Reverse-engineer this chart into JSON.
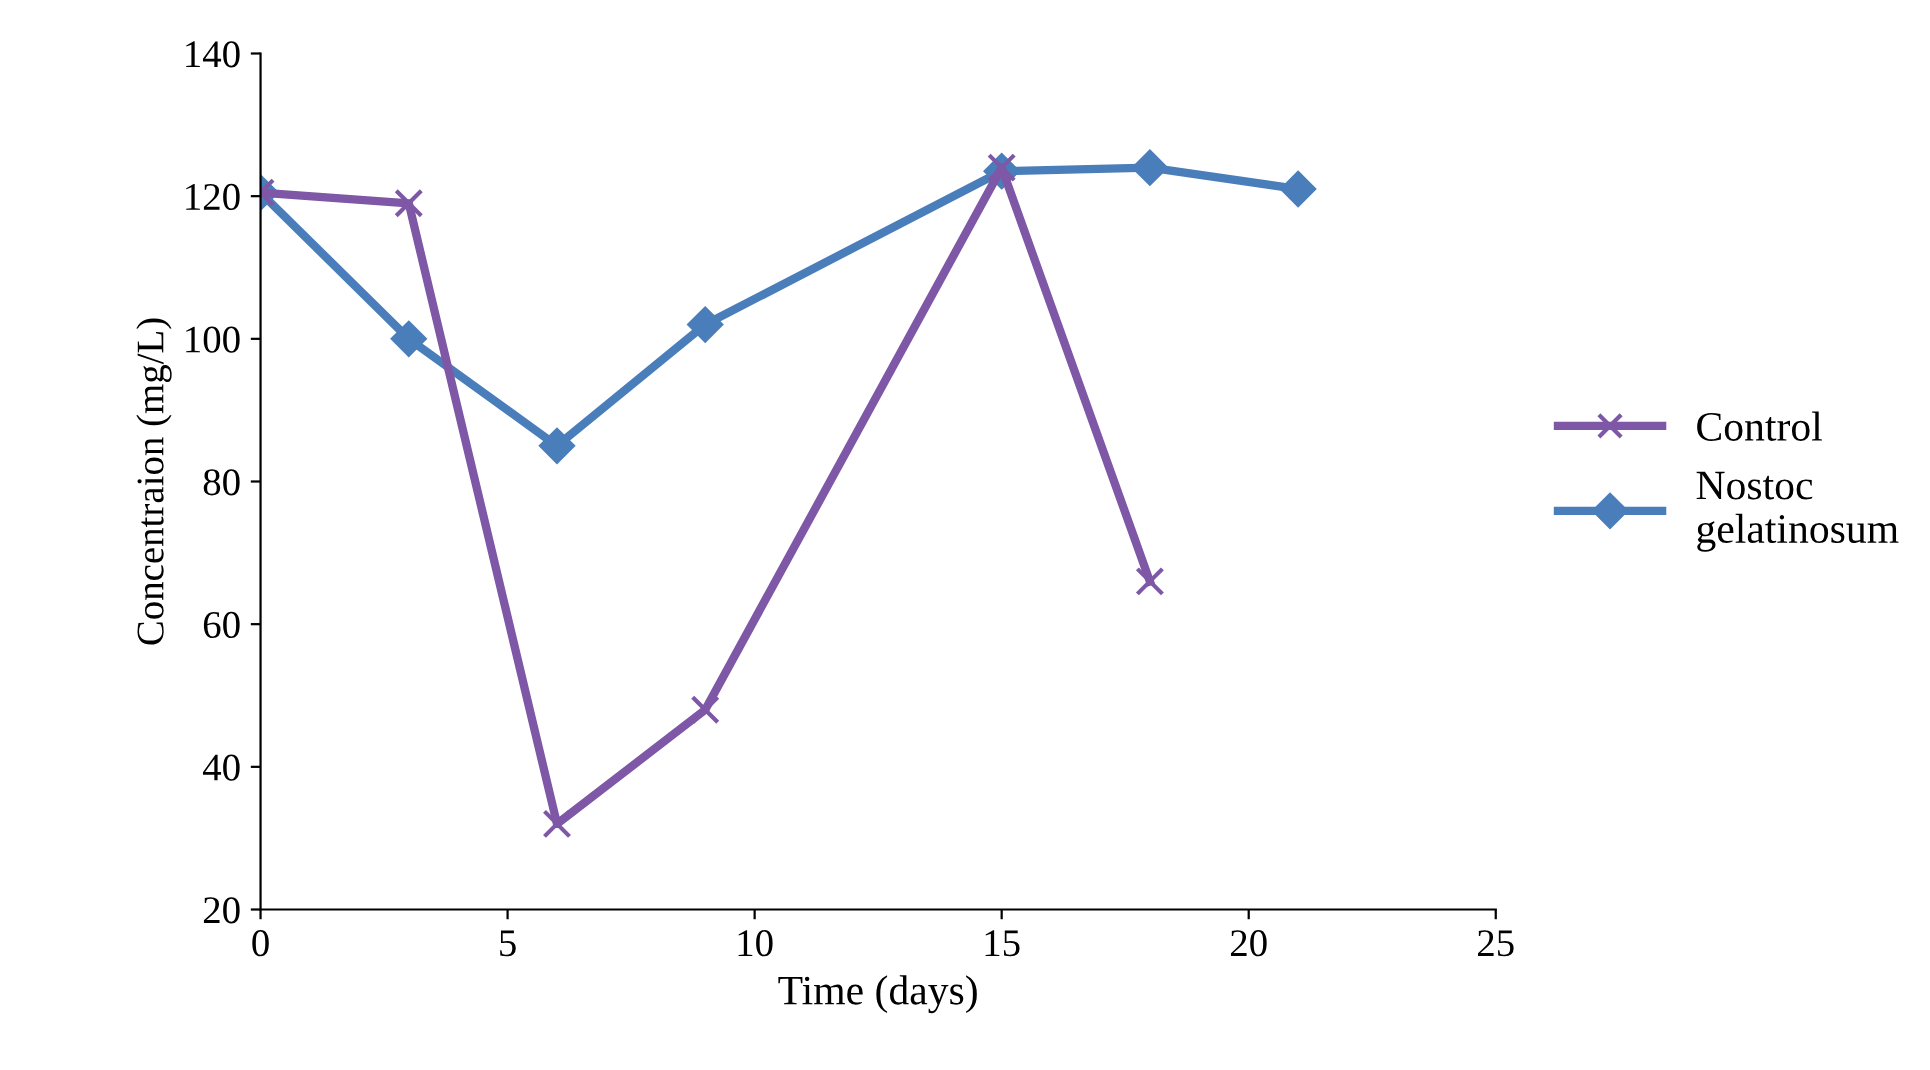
{
  "chart_data": {
    "type": "line",
    "xlabel": "Time (days)",
    "ylabel": "Concentraion (mg/L)",
    "xlim": [
      0,
      25
    ],
    "xticks": [
      0,
      5,
      10,
      15,
      20,
      25
    ],
    "ylim": [
      20,
      140
    ],
    "yticks": [
      20,
      40,
      60,
      80,
      100,
      120,
      140
    ],
    "grid": false,
    "legend": "right",
    "line_style": "solid",
    "series": [
      {
        "name": "Control",
        "color": "#7e57a6",
        "marker": "cross",
        "x": [
          0,
          3,
          6,
          9,
          15,
          18
        ],
        "values": [
          120.5,
          119,
          32,
          48,
          124,
          66
        ]
      },
      {
        "name": "Nostoc\ngelatinosum",
        "color": "#4a7ebb",
        "marker": "diamond",
        "x": [
          0,
          3,
          6,
          9,
          15,
          18,
          21
        ],
        "values": [
          120.5,
          100,
          85,
          102,
          123.5,
          124,
          121
        ]
      }
    ]
  }
}
